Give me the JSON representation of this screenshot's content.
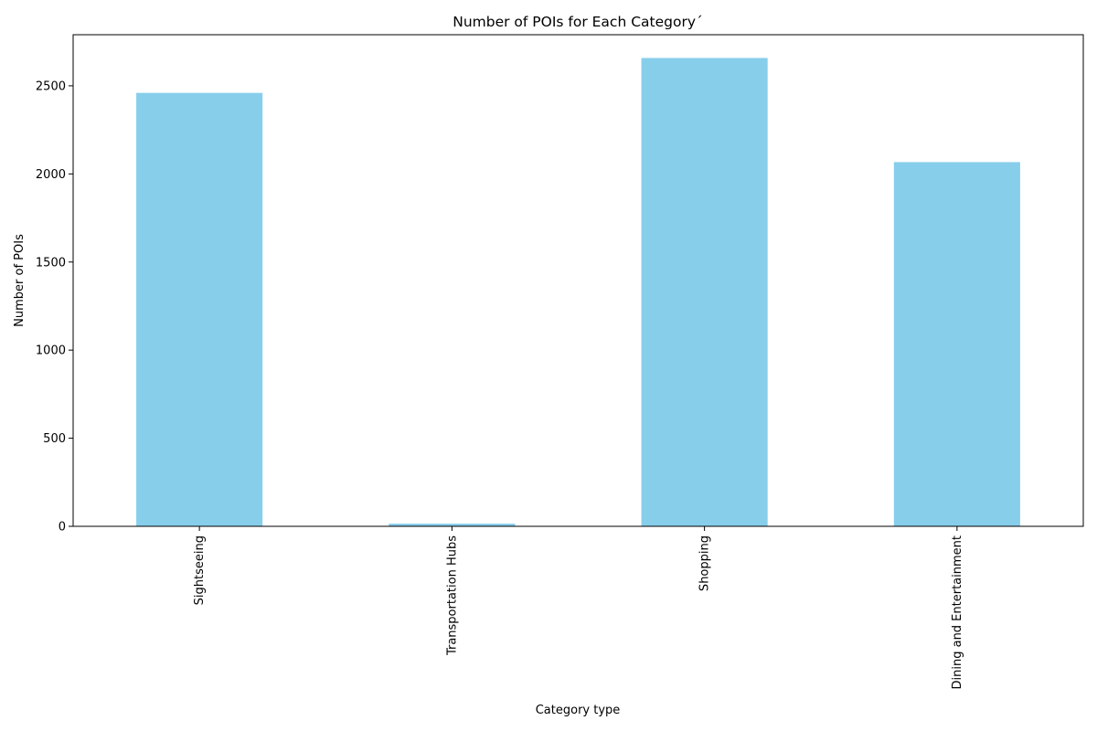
{
  "chart_data": {
    "type": "bar",
    "title": "Number of POIs for Each Category´",
    "xlabel": "Category type",
    "ylabel": "Number of POIs",
    "categories": [
      "Sightseeing",
      "Transportation Hubs",
      "Shopping",
      "Dining and Entertainment"
    ],
    "values": [
      2460,
      15,
      2658,
      2067
    ],
    "ylim": [
      0,
      2790
    ],
    "yticks": [
      0,
      500,
      1000,
      1500,
      2000,
      2500
    ],
    "bar_color": "#87ceeb",
    "grid": false,
    "legend": "none"
  }
}
